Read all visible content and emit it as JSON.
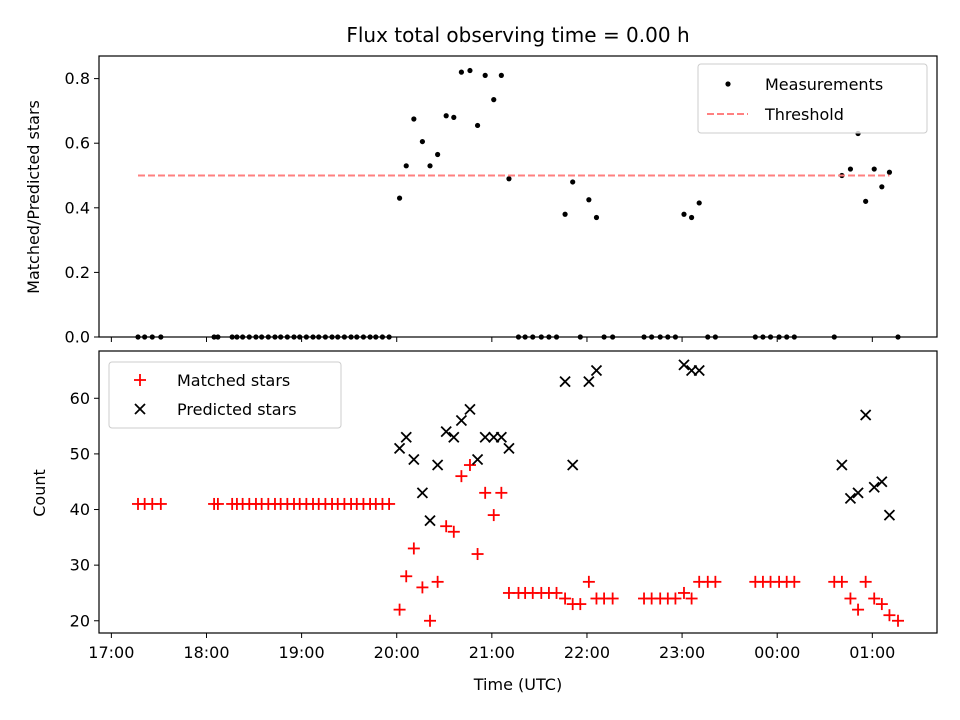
{
  "figure": {
    "title": "Flux total observing time = 0.00 h",
    "xlabel": "Time (UTC)",
    "xticks": [
      "17:00",
      "18:00",
      "19:00",
      "20:00",
      "21:00",
      "22:00",
      "23:00",
      "00:00",
      "01:00"
    ]
  },
  "chart_data": [
    {
      "type": "scatter",
      "title": "Flux total observing time = 0.00 h",
      "ylabel": "Matched/Predicted stars",
      "ylim": [
        0,
        0.87
      ],
      "xlim": [
        16.87,
        25.68
      ],
      "yticks": [
        "0.0",
        "0.2",
        "0.4",
        "0.6",
        "0.8"
      ],
      "legend": {
        "placement": "top-right"
      },
      "series": [
        {
          "name": "Measurements",
          "color": "#000000",
          "marker": "dot",
          "x": [
            17.28,
            17.35,
            17.43,
            17.52,
            18.08,
            18.12,
            18.27,
            18.32,
            18.38,
            18.45,
            18.52,
            18.58,
            18.65,
            18.72,
            18.78,
            18.85,
            18.92,
            18.98,
            19.05,
            19.12,
            19.18,
            19.25,
            19.32,
            19.38,
            19.45,
            19.52,
            19.58,
            19.65,
            19.72,
            19.78,
            19.85,
            19.92,
            20.03,
            20.1,
            20.18,
            20.27,
            20.35,
            20.43,
            20.52,
            20.6,
            20.68,
            20.77,
            20.85,
            20.93,
            21.02,
            21.1,
            21.18,
            21.28,
            21.35,
            21.43,
            21.52,
            21.6,
            21.68,
            21.77,
            21.85,
            21.93,
            22.02,
            22.1,
            22.18,
            22.27,
            22.6,
            22.68,
            22.77,
            22.85,
            22.93,
            23.02,
            23.1,
            23.18,
            23.27,
            23.35,
            23.77,
            23.85,
            23.93,
            24.02,
            24.1,
            24.18,
            24.6,
            24.68,
            24.77,
            24.85,
            24.93,
            25.02,
            25.1,
            25.18,
            25.27
          ],
          "y": [
            0,
            0,
            0,
            0,
            0,
            0,
            0,
            0,
            0,
            0,
            0,
            0,
            0,
            0,
            0,
            0,
            0,
            0,
            0,
            0,
            0,
            0,
            0,
            0,
            0,
            0,
            0,
            0,
            0,
            0,
            0,
            0,
            0.43,
            0.53,
            0.675,
            0.605,
            0.53,
            0.565,
            0.685,
            0.68,
            0.82,
            0.825,
            0.655,
            0.81,
            0.735,
            0.81,
            0.49,
            0,
            0,
            0,
            0,
            0,
            0,
            0.38,
            0.48,
            0,
            0.425,
            0.37,
            0,
            0,
            0,
            0,
            0,
            0,
            0,
            0.38,
            0.37,
            0.415,
            0,
            0,
            0,
            0,
            0,
            0,
            0,
            0,
            0,
            0.5,
            0.52,
            0.63,
            0.42,
            0.52,
            0.465,
            0.51,
            0
          ]
        },
        {
          "name": "Threshold",
          "color": "#ff8080",
          "style": "dashed",
          "x": [
            17.28,
            25.18
          ],
          "y": [
            0.5,
            0.5
          ]
        }
      ]
    },
    {
      "type": "scatter",
      "ylabel": "Count",
      "ylim": [
        17.8,
        68.5
      ],
      "xlim": [
        16.87,
        25.68
      ],
      "yticks": [
        "20",
        "30",
        "40",
        "50",
        "60"
      ],
      "legend": {
        "placement": "top-left"
      },
      "series": [
        {
          "name": "Matched stars",
          "color": "#ff0000",
          "marker": "plus",
          "x": [
            17.28,
            17.35,
            17.43,
            17.52,
            18.08,
            18.12,
            18.27,
            18.32,
            18.38,
            18.45,
            18.52,
            18.58,
            18.65,
            18.72,
            18.78,
            18.85,
            18.92,
            18.98,
            19.05,
            19.12,
            19.18,
            19.25,
            19.32,
            19.38,
            19.45,
            19.52,
            19.58,
            19.65,
            19.72,
            19.78,
            19.85,
            19.92,
            20.03,
            20.1,
            20.18,
            20.27,
            20.35,
            20.43,
            20.52,
            20.6,
            20.68,
            20.77,
            20.85,
            20.93,
            21.02,
            21.1,
            21.18,
            21.28,
            21.35,
            21.43,
            21.52,
            21.6,
            21.68,
            21.77,
            21.85,
            21.93,
            22.02,
            22.1,
            22.18,
            22.27,
            22.6,
            22.68,
            22.77,
            22.85,
            22.93,
            23.02,
            23.1,
            23.18,
            23.27,
            23.35,
            23.77,
            23.85,
            23.93,
            24.02,
            24.1,
            24.18,
            24.6,
            24.68,
            24.77,
            24.85,
            24.93,
            25.02,
            25.1,
            25.18,
            25.27
          ],
          "y": [
            41,
            41,
            41,
            41,
            41,
            41,
            41,
            41,
            41,
            41,
            41,
            41,
            41,
            41,
            41,
            41,
            41,
            41,
            41,
            41,
            41,
            41,
            41,
            41,
            41,
            41,
            41,
            41,
            41,
            41,
            41,
            41,
            22,
            28,
            33,
            26,
            20,
            27,
            37,
            36,
            46,
            48,
            32,
            43,
            39,
            43,
            25,
            25,
            25,
            25,
            25,
            25,
            25,
            24,
            23,
            23,
            27,
            24,
            24,
            24,
            24,
            24,
            24,
            24,
            24,
            25,
            24,
            27,
            27,
            27,
            27,
            27,
            27,
            27,
            27,
            27,
            27,
            27,
            24,
            22,
            27,
            24,
            23,
            21,
            20
          ]
        },
        {
          "name": "Predicted stars",
          "color": "#000000",
          "marker": "x",
          "x": [
            20.03,
            20.1,
            20.18,
            20.27,
            20.35,
            20.43,
            20.52,
            20.6,
            20.68,
            20.77,
            20.85,
            20.93,
            21.02,
            21.1,
            21.18,
            21.77,
            21.85,
            22.02,
            22.1,
            23.02,
            23.1,
            23.18,
            24.68,
            24.77,
            24.85,
            24.93,
            25.02,
            25.1,
            25.18
          ],
          "y": [
            51,
            53,
            49,
            43,
            38,
            48,
            54,
            53,
            56,
            58,
            49,
            53,
            53,
            53,
            51,
            63,
            48,
            63,
            65,
            66,
            65,
            65,
            48,
            42,
            43,
            57,
            44,
            45,
            39
          ]
        }
      ]
    }
  ]
}
